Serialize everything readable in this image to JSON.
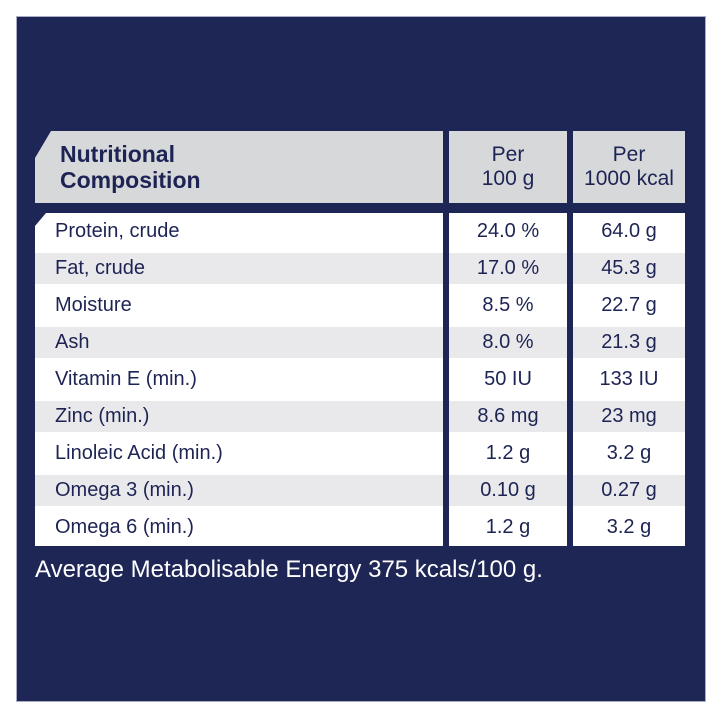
{
  "colors": {
    "page_bg": "#ffffff",
    "panel_bg": "#1e2656",
    "header_cell_bg": "#d7d8da",
    "row_bg": "#ffffff",
    "row_alt_bg": "#e9e9eb",
    "text_dark": "#1d2454",
    "text_light": "#ffffff"
  },
  "table": {
    "header": {
      "title_lines": [
        "Nutritional",
        "Composition"
      ],
      "per_100g_lines": [
        "Per",
        "100 g"
      ],
      "per_1000kcal_lines": [
        "Per",
        "1000 kcal"
      ]
    },
    "rows": [
      {
        "label": "Protein, crude",
        "per_100g": "24.0 %",
        "per_1000_kcal": "64.0 g"
      },
      {
        "label": "Fat, crude",
        "per_100g": "17.0 %",
        "per_1000_kcal": "45.3 g"
      },
      {
        "label": "Moisture",
        "per_100g": "8.5 %",
        "per_1000_kcal": "22.7 g"
      },
      {
        "label": "Ash",
        "per_100g": "8.0 %",
        "per_1000_kcal": "21.3 g"
      },
      {
        "label": "Vitamin E (min.)",
        "per_100g": "50 IU",
        "per_1000_kcal": "133 IU"
      },
      {
        "label": "Zinc (min.)",
        "per_100g": "8.6 mg",
        "per_1000_kcal": "23 mg"
      },
      {
        "label": "Linoleic Acid (min.)",
        "per_100g": "1.2 g",
        "per_1000_kcal": "3.2 g"
      },
      {
        "label": "Omega 3 (min.)",
        "per_100g": "0.10 g",
        "per_1000_kcal": "0.27 g"
      },
      {
        "label": "Omega 6 (min.)",
        "per_100g": "1.2 g",
        "per_1000_kcal": "3.2 g"
      }
    ]
  },
  "footer": {
    "text": "Average Metabolisable Energy 375 kcals/100 g."
  }
}
